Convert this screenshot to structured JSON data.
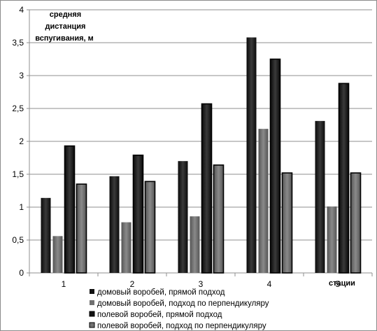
{
  "chart_data": {
    "type": "bar",
    "ylabel": [
      "средняя",
      "дистанция",
      "вспугивания, м"
    ],
    "xlabel": "стации",
    "ylim": [
      0,
      4
    ],
    "yticks": [
      0,
      0.5,
      1,
      1.5,
      2,
      2.5,
      3,
      3.5,
      4
    ],
    "ytick_labels": [
      "0",
      "0,5",
      "1",
      "1,5",
      "2",
      "2,5",
      "3",
      "3,5",
      "4"
    ],
    "categories": [
      "1",
      "2",
      "3",
      "4",
      "5"
    ],
    "grid": true,
    "legend_position": "bottom",
    "series": [
      {
        "name": "домовый воробей, прямой подход",
        "values": [
          1.14,
          1.47,
          1.7,
          3.58,
          2.31
        ],
        "color": "#1c1c1c",
        "border": false
      },
      {
        "name": "домовый воробей, подход по перпендикуляру",
        "values": [
          0.56,
          0.77,
          0.86,
          2.19,
          1.01
        ],
        "color": "#6e6e6e",
        "border": false
      },
      {
        "name": "полевой воробей, прямой подход",
        "values": [
          1.93,
          1.79,
          2.57,
          3.25,
          2.88
        ],
        "color": "#1a1a1a",
        "border": true
      },
      {
        "name": "полевой воробей, подход по перпендикуляру",
        "values": [
          1.35,
          1.39,
          1.64,
          1.52,
          1.52
        ],
        "color": "#707070",
        "border": true
      }
    ]
  }
}
